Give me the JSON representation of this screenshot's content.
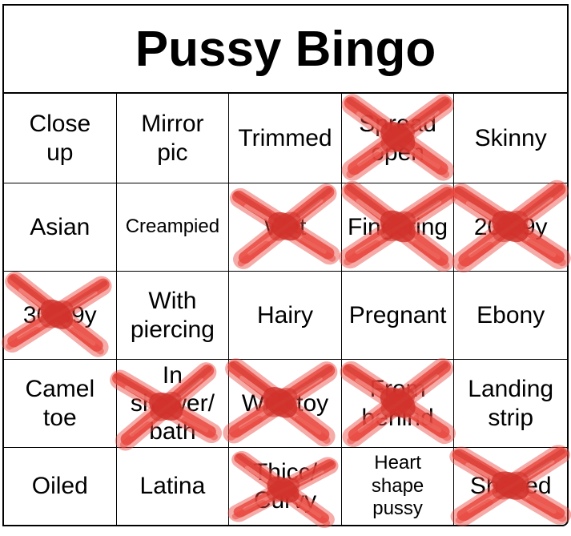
{
  "title": "Pussy Bingo",
  "mark": {
    "icon": "red-x-brush-icon",
    "main_color": "#e8453c",
    "light_color": "#f59d96",
    "dark_color": "#cf312a",
    "marked_count": 10
  },
  "grid": {
    "columns": 5,
    "rows": [
      {
        "cells": [
          {
            "label": "Close\nup",
            "marked": false,
            "small": false
          },
          {
            "label": "Mirror\npic",
            "marked": false,
            "small": false
          },
          {
            "label": "Trimmed",
            "marked": false,
            "small": false
          },
          {
            "label": "Spread\nopen",
            "marked": true,
            "small": false
          },
          {
            "label": "Skinny",
            "marked": false,
            "small": false
          }
        ]
      },
      {
        "cells": [
          {
            "label": "Asian",
            "marked": false,
            "small": false
          },
          {
            "label": "Creampied",
            "marked": false,
            "small": true
          },
          {
            "label": "Wet",
            "marked": true,
            "small": false
          },
          {
            "label": "Fingering",
            "marked": true,
            "small": false
          },
          {
            "label": "20-29y",
            "marked": true,
            "small": false
          }
        ]
      },
      {
        "cells": [
          {
            "label": "30-39y",
            "marked": true,
            "small": false
          },
          {
            "label": "With\npiercing",
            "marked": false,
            "small": false
          },
          {
            "label": "Hairy",
            "marked": false,
            "small": false
          },
          {
            "label": "Pregnant",
            "marked": false,
            "small": false
          },
          {
            "label": "Ebony",
            "marked": false,
            "small": false
          }
        ]
      },
      {
        "cells": [
          {
            "label": "Camel\ntoe",
            "marked": false,
            "small": false
          },
          {
            "label": "In\nshower/\nbath",
            "marked": true,
            "small": false
          },
          {
            "label": "With toy",
            "marked": true,
            "small": false
          },
          {
            "label": "From\nbehind",
            "marked": true,
            "small": false
          },
          {
            "label": "Landing\nstrip",
            "marked": false,
            "small": false
          }
        ]
      },
      {
        "cells": [
          {
            "label": "Oiled",
            "marked": false,
            "small": false
          },
          {
            "label": "Latina",
            "marked": false,
            "small": false
          },
          {
            "label": "Thicc/\nCurvy",
            "marked": true,
            "small": false
          },
          {
            "label": "Heart\nshape\npussy",
            "marked": false,
            "small": true
          },
          {
            "label": "Shaved",
            "marked": true,
            "small": false
          }
        ]
      }
    ]
  }
}
